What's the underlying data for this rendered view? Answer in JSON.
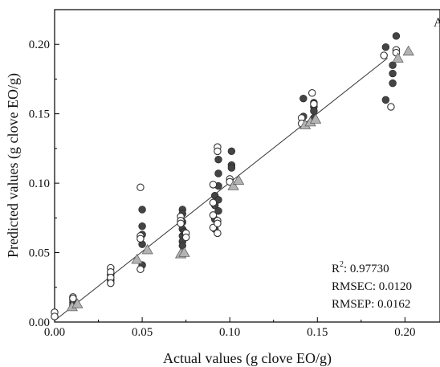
{
  "chart_data": {
    "type": "scatter",
    "title": "",
    "panel_label": "A",
    "xlabel": "Actual values (g clove EO/g)",
    "ylabel": "Predicted values (g clove EO/g)",
    "xlim": [
      0.0,
      0.22
    ],
    "ylim": [
      0.0,
      0.225
    ],
    "xticks": [
      0.0,
      0.05,
      0.1,
      0.15,
      0.2
    ],
    "xtick_labels": [
      "0.00",
      "0.05",
      "0.10",
      "0.15",
      "0.20"
    ],
    "yticks": [
      0.0,
      0.05,
      0.1,
      0.15,
      0.2
    ],
    "ytick_labels": [
      "0.00",
      "0.05",
      "0.10",
      "0.15",
      "0.20"
    ],
    "grid": false,
    "legend": "none",
    "fit_line": {
      "x": [
        0.0,
        0.19
      ],
      "y": [
        0.001,
        0.19
      ],
      "color": "#333333"
    },
    "stats": {
      "r2_label": "R",
      "r2_sup": "2",
      "r2_value": ": 0.97730",
      "rmsec": "RMSEC: 0.0120",
      "rmsep": "RMSEP: 0.0162"
    },
    "series": [
      {
        "marker": "filled-circle",
        "color": "#444444",
        "points": [
          [
            0.0105,
            0.014
          ],
          [
            0.0105,
            0.012
          ],
          [
            0.0105,
            0.016
          ],
          [
            0.032,
            0.03
          ],
          [
            0.032,
            0.034
          ],
          [
            0.05,
            0.081
          ],
          [
            0.05,
            0.069
          ],
          [
            0.05,
            0.063
          ],
          [
            0.05,
            0.056
          ],
          [
            0.05,
            0.041
          ],
          [
            0.073,
            0.081
          ],
          [
            0.073,
            0.078
          ],
          [
            0.073,
            0.072
          ],
          [
            0.073,
            0.067
          ],
          [
            0.073,
            0.062
          ],
          [
            0.073,
            0.058
          ],
          [
            0.073,
            0.055
          ],
          [
            0.074,
            0.065
          ],
          [
            0.0915,
            0.091
          ],
          [
            0.0915,
            0.084
          ],
          [
            0.0915,
            0.074
          ],
          [
            0.0915,
            0.067
          ],
          [
            0.0935,
            0.117
          ],
          [
            0.0935,
            0.107
          ],
          [
            0.0935,
            0.098
          ],
          [
            0.0935,
            0.088
          ],
          [
            0.0935,
            0.08
          ],
          [
            0.101,
            0.123
          ],
          [
            0.101,
            0.113
          ],
          [
            0.101,
            0.111
          ],
          [
            0.142,
            0.161
          ],
          [
            0.142,
            0.148
          ],
          [
            0.148,
            0.158
          ],
          [
            0.148,
            0.155
          ],
          [
            0.148,
            0.152
          ],
          [
            0.148,
            0.147
          ],
          [
            0.189,
            0.198
          ],
          [
            0.189,
            0.16
          ],
          [
            0.193,
            0.185
          ],
          [
            0.193,
            0.179
          ],
          [
            0.193,
            0.172
          ],
          [
            0.195,
            0.206
          ]
        ]
      },
      {
        "marker": "open-circle",
        "color": "#333333",
        "points": [
          [
            0.0,
            0.007
          ],
          [
            0.0,
            0.004
          ],
          [
            0.0105,
            0.018
          ],
          [
            0.0105,
            0.017
          ],
          [
            0.032,
            0.039
          ],
          [
            0.032,
            0.036
          ],
          [
            0.032,
            0.032
          ],
          [
            0.032,
            0.028
          ],
          [
            0.049,
            0.097
          ],
          [
            0.049,
            0.062
          ],
          [
            0.049,
            0.06
          ],
          [
            0.049,
            0.038
          ],
          [
            0.072,
            0.076
          ],
          [
            0.072,
            0.073
          ],
          [
            0.072,
            0.071
          ],
          [
            0.075,
            0.064
          ],
          [
            0.075,
            0.061
          ],
          [
            0.0905,
            0.099
          ],
          [
            0.0905,
            0.086
          ],
          [
            0.0905,
            0.077
          ],
          [
            0.0905,
            0.068
          ],
          [
            0.093,
            0.126
          ],
          [
            0.093,
            0.123
          ],
          [
            0.093,
            0.073
          ],
          [
            0.093,
            0.071
          ],
          [
            0.093,
            0.064
          ],
          [
            0.1,
            0.103
          ],
          [
            0.1,
            0.101
          ],
          [
            0.141,
            0.147
          ],
          [
            0.141,
            0.143
          ],
          [
            0.147,
            0.165
          ],
          [
            0.148,
            0.157
          ],
          [
            0.188,
            0.192
          ],
          [
            0.192,
            0.155
          ],
          [
            0.195,
            0.196
          ],
          [
            0.195,
            0.194
          ]
        ]
      },
      {
        "marker": "triangle",
        "color": "#b3b3b3",
        "points": [
          [
            0.01,
            0.011
          ],
          [
            0.013,
            0.013
          ],
          [
            0.047,
            0.045
          ],
          [
            0.053,
            0.052
          ],
          [
            0.072,
            0.049
          ],
          [
            0.074,
            0.05
          ],
          [
            0.102,
            0.098
          ],
          [
            0.105,
            0.102
          ],
          [
            0.143,
            0.142
          ],
          [
            0.146,
            0.144
          ],
          [
            0.149,
            0.146
          ],
          [
            0.196,
            0.19
          ],
          [
            0.202,
            0.195
          ]
        ]
      }
    ]
  }
}
